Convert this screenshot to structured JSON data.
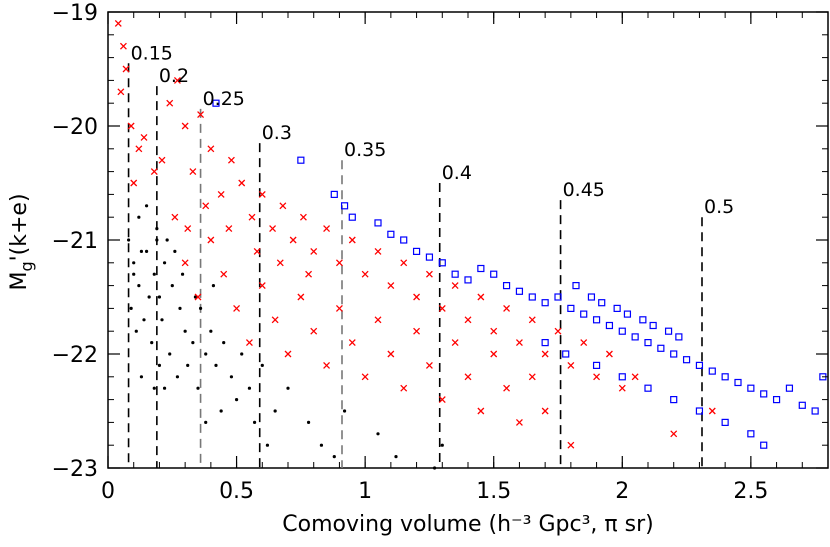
{
  "chart_data": {
    "type": "scatter",
    "title": "",
    "xlabel": "Comoving volume (h⁻³ Gpc³, π sr)",
    "ylabel": "Mᵧʹ(k+e)",
    "ylabel_main": "M",
    "ylabel_sub": "g",
    "ylabel_rest": "'(k+e)",
    "xlim": [
      0,
      2.8
    ],
    "ylim": [
      -19,
      -23
    ],
    "xticks": [
      {
        "value": 0,
        "label": "0"
      },
      {
        "value": 0.5,
        "label": "0.5"
      },
      {
        "value": 1,
        "label": "1"
      },
      {
        "value": 1.5,
        "label": "1.5"
      },
      {
        "value": 2,
        "label": "2"
      },
      {
        "value": 2.5,
        "label": "2.5"
      }
    ],
    "yticks": [
      {
        "value": -19,
        "label": "−19"
      },
      {
        "value": -20,
        "label": "−20"
      },
      {
        "value": -21,
        "label": "−21"
      },
      {
        "value": -22,
        "label": "−22"
      },
      {
        "value": -23,
        "label": "−23"
      }
    ],
    "redshift_markers": [
      {
        "z": "0.15",
        "volume": 0.08,
        "color": "#000000",
        "y_top": -19.45
      },
      {
        "z": "0.2",
        "volume": 0.19,
        "color": "#000000",
        "y_top": -19.65
      },
      {
        "z": "0.25",
        "volume": 0.36,
        "color": "#777777",
        "y_top": -19.85
      },
      {
        "z": "0.3",
        "volume": 0.59,
        "color": "#000000",
        "y_top": -20.15
      },
      {
        "z": "0.35",
        "volume": 0.91,
        "color": "#777777",
        "y_top": -20.3
      },
      {
        "z": "0.4",
        "volume": 1.29,
        "color": "#000000",
        "y_top": -20.5
      },
      {
        "z": "0.45",
        "volume": 1.76,
        "color": "#000000",
        "y_top": -20.65
      },
      {
        "z": "0.5",
        "volume": 2.31,
        "color": "#000000",
        "y_top": -20.8
      }
    ],
    "series": [
      {
        "name": "black-dots",
        "marker": "dot",
        "color": "#000000",
        "points": [
          [
            0.08,
            -21.0
          ],
          [
            0.1,
            -21.2
          ],
          [
            0.12,
            -21.4
          ],
          [
            0.09,
            -21.6
          ],
          [
            0.15,
            -21.1
          ],
          [
            0.18,
            -21.3
          ],
          [
            0.2,
            -21.5
          ],
          [
            0.11,
            -21.8
          ],
          [
            0.14,
            -21.7
          ],
          [
            0.17,
            -21.9
          ],
          [
            0.22,
            -21.2
          ],
          [
            0.25,
            -21.4
          ],
          [
            0.28,
            -21.6
          ],
          [
            0.3,
            -21.8
          ],
          [
            0.24,
            -22.0
          ],
          [
            0.2,
            -22.1
          ],
          [
            0.33,
            -21.9
          ],
          [
            0.36,
            -21.6
          ],
          [
            0.4,
            -21.8
          ],
          [
            0.38,
            -22.0
          ],
          [
            0.12,
            -20.8
          ],
          [
            0.15,
            -20.7
          ],
          [
            0.19,
            -20.9
          ],
          [
            0.23,
            -21.0
          ],
          [
            0.26,
            -21.1
          ],
          [
            0.13,
            -22.2
          ],
          [
            0.18,
            -22.3
          ],
          [
            0.22,
            -22.3
          ],
          [
            0.27,
            -22.2
          ],
          [
            0.31,
            -22.1
          ],
          [
            0.35,
            -22.3
          ],
          [
            0.42,
            -22.1
          ],
          [
            0.45,
            -21.9
          ],
          [
            0.48,
            -22.2
          ],
          [
            0.52,
            -22.0
          ],
          [
            0.5,
            -22.4
          ],
          [
            0.44,
            -22.5
          ],
          [
            0.38,
            -22.6
          ],
          [
            0.55,
            -22.3
          ],
          [
            0.6,
            -22.1
          ],
          [
            0.57,
            -22.6
          ],
          [
            0.62,
            -22.8
          ],
          [
            0.7,
            -22.3
          ],
          [
            0.65,
            -22.5
          ],
          [
            0.78,
            -22.6
          ],
          [
            0.83,
            -22.8
          ],
          [
            0.92,
            -22.5
          ],
          [
            0.88,
            -22.9
          ],
          [
            1.05,
            -22.7
          ],
          [
            1.12,
            -22.9
          ],
          [
            1.3,
            -22.8
          ],
          [
            1.27,
            -23.0
          ],
          [
            0.1,
            -21.3
          ],
          [
            0.16,
            -21.5
          ],
          [
            0.21,
            -21.7
          ],
          [
            0.29,
            -21.3
          ],
          [
            0.34,
            -21.5
          ],
          [
            0.41,
            -21.4
          ],
          [
            0.13,
            -21.1
          ],
          [
            0.19,
            -21.0
          ]
        ]
      },
      {
        "name": "red-crosses",
        "marker": "cross",
        "color": "#ff0000",
        "points": [
          [
            0.04,
            -19.1
          ],
          [
            0.06,
            -19.3
          ],
          [
            0.07,
            -19.5
          ],
          [
            0.05,
            -19.7
          ],
          [
            0.09,
            -20.0
          ],
          [
            0.12,
            -20.2
          ],
          [
            0.1,
            -20.5
          ],
          [
            0.14,
            -20.1
          ],
          [
            0.18,
            -20.4
          ],
          [
            0.21,
            -20.3
          ],
          [
            0.24,
            -19.8
          ],
          [
            0.27,
            -19.6
          ],
          [
            0.3,
            -20.0
          ],
          [
            0.33,
            -20.4
          ],
          [
            0.36,
            -19.9
          ],
          [
            0.4,
            -20.2
          ],
          [
            0.44,
            -20.6
          ],
          [
            0.48,
            -20.3
          ],
          [
            0.52,
            -20.5
          ],
          [
            0.56,
            -20.8
          ],
          [
            0.6,
            -20.6
          ],
          [
            0.64,
            -20.9
          ],
          [
            0.68,
            -20.7
          ],
          [
            0.72,
            -21.0
          ],
          [
            0.76,
            -20.8
          ],
          [
            0.8,
            -21.1
          ],
          [
            0.85,
            -20.9
          ],
          [
            0.9,
            -21.2
          ],
          [
            0.95,
            -21.0
          ],
          [
            1.0,
            -21.3
          ],
          [
            1.05,
            -21.1
          ],
          [
            1.1,
            -21.4
          ],
          [
            1.15,
            -21.2
          ],
          [
            1.2,
            -21.5
          ],
          [
            1.25,
            -21.3
          ],
          [
            1.3,
            -21.6
          ],
          [
            1.35,
            -21.4
          ],
          [
            1.4,
            -21.7
          ],
          [
            1.45,
            -21.5
          ],
          [
            1.5,
            -21.8
          ],
          [
            1.55,
            -21.6
          ],
          [
            1.6,
            -21.9
          ],
          [
            1.65,
            -21.7
          ],
          [
            1.7,
            -22.0
          ],
          [
            1.75,
            -21.8
          ],
          [
            1.8,
            -22.1
          ],
          [
            1.85,
            -21.9
          ],
          [
            1.9,
            -22.2
          ],
          [
            1.95,
            -22.0
          ],
          [
            2.0,
            -22.3
          ],
          [
            0.3,
            -21.2
          ],
          [
            0.35,
            -21.5
          ],
          [
            0.4,
            -21.0
          ],
          [
            0.45,
            -21.3
          ],
          [
            0.5,
            -21.6
          ],
          [
            0.55,
            -21.9
          ],
          [
            0.6,
            -21.4
          ],
          [
            0.65,
            -21.7
          ],
          [
            0.7,
            -22.0
          ],
          [
            0.75,
            -21.5
          ],
          [
            0.8,
            -21.8
          ],
          [
            0.85,
            -22.1
          ],
          [
            0.9,
            -21.6
          ],
          [
            0.95,
            -21.9
          ],
          [
            1.0,
            -22.2
          ],
          [
            1.05,
            -21.7
          ],
          [
            1.1,
            -22.0
          ],
          [
            1.15,
            -22.3
          ],
          [
            1.2,
            -21.8
          ],
          [
            1.25,
            -22.1
          ],
          [
            1.3,
            -22.4
          ],
          [
            1.35,
            -21.9
          ],
          [
            1.4,
            -22.2
          ],
          [
            1.45,
            -22.5
          ],
          [
            1.5,
            -22.0
          ],
          [
            1.55,
            -22.3
          ],
          [
            1.6,
            -22.6
          ],
          [
            1.65,
            -22.2
          ],
          [
            1.7,
            -22.5
          ],
          [
            1.8,
            -22.8
          ],
          [
            2.05,
            -22.2
          ],
          [
            2.2,
            -22.7
          ],
          [
            2.35,
            -22.5
          ],
          [
            0.26,
            -20.8
          ],
          [
            0.31,
            -20.9
          ],
          [
            0.38,
            -20.7
          ],
          [
            0.47,
            -20.9
          ],
          [
            0.58,
            -21.1
          ],
          [
            0.67,
            -21.2
          ],
          [
            0.78,
            -21.3
          ]
        ]
      },
      {
        "name": "blue-squares",
        "marker": "square",
        "color": "#0000ff",
        "points": [
          [
            0.42,
            -19.8
          ],
          [
            0.75,
            -20.3
          ],
          [
            0.88,
            -20.6
          ],
          [
            0.92,
            -20.7
          ],
          [
            0.95,
            -20.8
          ],
          [
            1.05,
            -20.85
          ],
          [
            1.1,
            -20.95
          ],
          [
            1.15,
            -21.0
          ],
          [
            1.2,
            -21.1
          ],
          [
            1.25,
            -21.15
          ],
          [
            1.3,
            -21.2
          ],
          [
            1.35,
            -21.3
          ],
          [
            1.4,
            -21.35
          ],
          [
            1.45,
            -21.25
          ],
          [
            1.5,
            -21.3
          ],
          [
            1.55,
            -21.4
          ],
          [
            1.6,
            -21.45
          ],
          [
            1.65,
            -21.5
          ],
          [
            1.7,
            -21.55
          ],
          [
            1.75,
            -21.5
          ],
          [
            1.8,
            -21.6
          ],
          [
            1.85,
            -21.65
          ],
          [
            1.9,
            -21.7
          ],
          [
            1.95,
            -21.75
          ],
          [
            2.0,
            -21.8
          ],
          [
            2.05,
            -21.85
          ],
          [
            2.1,
            -21.9
          ],
          [
            2.15,
            -21.95
          ],
          [
            2.2,
            -22.0
          ],
          [
            2.25,
            -22.05
          ],
          [
            2.3,
            -22.1
          ],
          [
            2.35,
            -22.15
          ],
          [
            2.4,
            -22.2
          ],
          [
            2.45,
            -22.25
          ],
          [
            2.5,
            -22.3
          ],
          [
            2.55,
            -22.35
          ],
          [
            2.6,
            -22.4
          ],
          [
            2.65,
            -22.3
          ],
          [
            2.7,
            -22.45
          ],
          [
            2.75,
            -22.5
          ],
          [
            2.78,
            -22.2
          ],
          [
            1.82,
            -21.4
          ],
          [
            1.88,
            -21.5
          ],
          [
            1.92,
            -21.55
          ],
          [
            1.98,
            -21.6
          ],
          [
            2.02,
            -21.65
          ],
          [
            2.08,
            -21.7
          ],
          [
            2.12,
            -21.75
          ],
          [
            2.18,
            -21.8
          ],
          [
            2.22,
            -21.85
          ],
          [
            1.7,
            -21.9
          ],
          [
            1.78,
            -22.0
          ],
          [
            1.9,
            -22.1
          ],
          [
            2.0,
            -22.2
          ],
          [
            2.1,
            -22.3
          ],
          [
            2.2,
            -22.4
          ],
          [
            2.3,
            -22.5
          ],
          [
            2.4,
            -22.6
          ],
          [
            2.5,
            -22.7
          ],
          [
            2.55,
            -22.8
          ]
        ]
      }
    ]
  }
}
